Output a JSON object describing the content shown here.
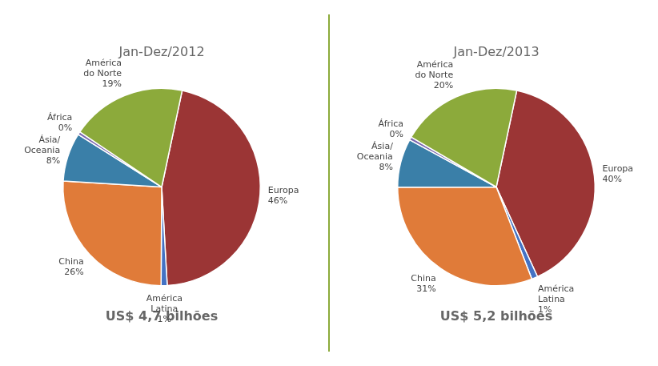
{
  "chart_data": [
    {
      "type": "pie",
      "title": "Jan-Dez/2012",
      "subtitle": "US$ 4,7 bilhões",
      "categories": [
        "Europa",
        "América\nLatina",
        "China",
        "Ásia/\nOceania",
        "África",
        "América\ndo Norte"
      ],
      "values": [
        46,
        1,
        26,
        8,
        0.5,
        19
      ],
      "value_labels": [
        "46%",
        "1%",
        "26%",
        "8%",
        "0%",
        "19%"
      ],
      "colors": [
        "#9b3535",
        "#4472c4",
        "#e07b39",
        "#3a7fa8",
        "#7b68b0",
        "#8caa3b"
      ],
      "data_labels": true
    },
    {
      "type": "pie",
      "title": "Jan-Dez/2013",
      "subtitle": "US$ 5,2 bilhões",
      "categories": [
        "Europa",
        "América\nLatina",
        "China",
        "Ásia/\nOceania",
        "África",
        "América\ndo Norte"
      ],
      "values": [
        40,
        1,
        31,
        8,
        0.5,
        20
      ],
      "value_labels": [
        "40%",
        "1%",
        "31%",
        "8%",
        "0%",
        "20%"
      ],
      "colors": [
        "#9b3535",
        "#4472c4",
        "#e07b39",
        "#3a7fa8",
        "#7b68b0",
        "#8caa3b"
      ],
      "data_labels": true
    }
  ]
}
